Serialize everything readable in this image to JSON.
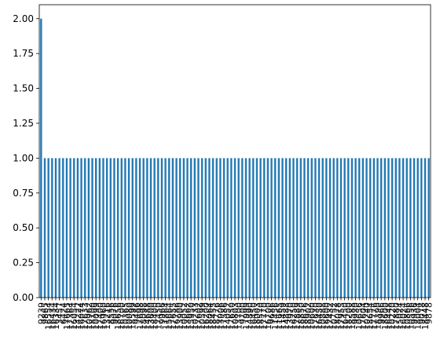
{
  "chart_data": {
    "type": "bar",
    "title": "",
    "xlabel": "",
    "ylabel": "",
    "ylim": [
      0,
      2.1
    ],
    "yticks": [
      0.0,
      0.25,
      0.5,
      0.75,
      1.0,
      1.25,
      1.5,
      1.75,
      2.0
    ],
    "ytick_labels": [
      "0.00",
      "0.25",
      "0.50",
      "0.75",
      "1.00",
      "1.25",
      "1.50",
      "1.75",
      "2.00"
    ],
    "bar_color": "#1f77b4",
    "grid": false,
    "legend": "none",
    "categories": [
      "9239",
      "9865",
      "16554",
      "16434",
      "16334",
      "3457",
      "6424",
      "17665",
      "17364",
      "16054",
      "14222",
      "16074",
      "17633",
      "10962",
      "18100",
      "10099",
      "17400",
      "16960",
      "13216",
      "8556",
      "9076",
      "18656",
      "16700",
      "10365",
      "10080",
      "18599",
      "9486",
      "17698",
      "18098",
      "14688",
      "13600",
      "18400",
      "17450",
      "9966",
      "11864",
      "15664",
      "17655",
      "16786",
      "13900",
      "10052",
      "13662",
      "15950",
      "10233",
      "17602",
      "10599",
      "16200",
      "18064",
      "18455",
      "18776",
      "13906",
      "17586",
      "14052",
      "17650",
      "10803",
      "13700",
      "9700",
      "17999",
      "14890",
      "16450",
      "18003",
      "18570",
      "17770",
      "16700",
      "9686",
      "11456",
      "11665",
      "11459",
      "14888",
      "13970",
      "16250",
      "17889",
      "18850",
      "18676",
      "18902",
      "10600",
      "17630",
      "16450",
      "10888",
      "16600",
      "17432",
      "10752",
      "18078",
      "17955",
      "16450",
      "18200",
      "18588",
      "9930",
      "10656",
      "17604",
      "10240",
      "18654",
      "17776",
      "18390",
      "9966",
      "18600",
      "16448",
      "10220",
      "17880",
      "15024",
      "16024",
      "10866",
      "10556",
      "9936",
      "18004",
      "9078",
      "18448",
      "9878"
    ],
    "values": [
      2,
      1,
      1,
      1,
      1,
      1,
      1,
      1,
      1,
      1,
      1,
      1,
      1,
      1,
      1,
      1,
      1,
      1,
      1,
      1,
      1,
      1,
      1,
      1,
      1,
      1,
      1,
      1,
      1,
      1,
      1,
      1,
      1,
      1,
      1,
      1,
      1,
      1,
      1,
      1,
      1,
      1,
      1,
      1,
      1,
      1,
      1,
      1,
      1,
      1,
      1,
      1,
      1,
      1,
      1,
      1,
      1,
      1,
      1,
      1,
      1,
      1,
      1,
      1,
      1,
      1,
      1,
      1,
      1,
      1,
      1,
      1,
      1,
      1,
      1,
      1,
      1,
      1,
      1,
      1,
      1,
      1,
      1,
      1,
      1,
      1,
      1,
      1,
      1,
      1,
      1,
      1,
      1,
      1,
      1,
      1,
      1,
      1,
      1,
      1,
      1,
      1,
      1,
      1,
      1,
      1,
      1
    ]
  }
}
